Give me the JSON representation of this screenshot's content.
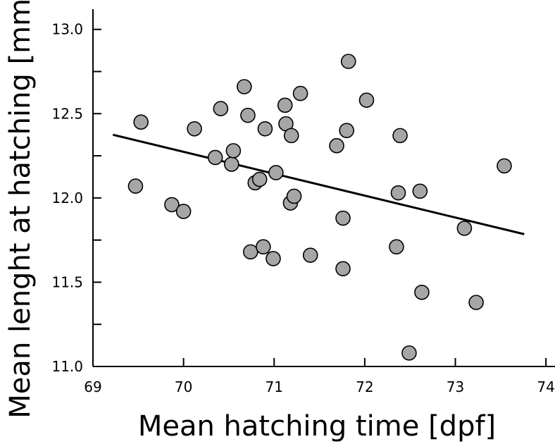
{
  "chart_data": {
    "type": "scatter",
    "xlabel": "Mean hatching time [dpf]",
    "ylabel": "Mean lenght at hatching [mm]",
    "xlim": [
      69,
      74.1
    ],
    "ylim": [
      11.0,
      13.12
    ],
    "x_ticks": [
      69,
      70,
      71,
      72,
      73,
      74
    ],
    "x_tick_labels": [
      "69",
      "70",
      "71",
      "72",
      "73",
      "74"
    ],
    "y_ticks": [
      11.0,
      11.5,
      12.0,
      12.5,
      13.0
    ],
    "y_tick_labels": [
      "11.0",
      "11.5",
      "12.0",
      "12.5",
      "13.0"
    ],
    "y_minor_ticks": [
      11.25,
      11.75,
      12.25,
      12.75
    ],
    "grid": false,
    "marker_color": "#a6a6a6",
    "marker_edge_color": "#000000",
    "line_color": "#000000",
    "points": [
      {
        "x": 69.47,
        "y": 12.07
      },
      {
        "x": 69.53,
        "y": 12.45
      },
      {
        "x": 69.87,
        "y": 11.96
      },
      {
        "x": 70.0,
        "y": 11.92
      },
      {
        "x": 70.12,
        "y": 12.41
      },
      {
        "x": 70.35,
        "y": 12.24
      },
      {
        "x": 70.41,
        "y": 12.53
      },
      {
        "x": 70.53,
        "y": 12.2
      },
      {
        "x": 70.55,
        "y": 12.28
      },
      {
        "x": 70.67,
        "y": 12.66
      },
      {
        "x": 70.71,
        "y": 12.49
      },
      {
        "x": 70.74,
        "y": 11.68
      },
      {
        "x": 70.79,
        "y": 12.09
      },
      {
        "x": 70.84,
        "y": 12.11
      },
      {
        "x": 70.88,
        "y": 11.71
      },
      {
        "x": 70.9,
        "y": 12.41
      },
      {
        "x": 70.99,
        "y": 11.64
      },
      {
        "x": 71.02,
        "y": 12.15
      },
      {
        "x": 71.12,
        "y": 12.55
      },
      {
        "x": 71.13,
        "y": 12.44
      },
      {
        "x": 71.18,
        "y": 11.97
      },
      {
        "x": 71.19,
        "y": 12.37
      },
      {
        "x": 71.22,
        "y": 12.01
      },
      {
        "x": 71.29,
        "y": 12.62
      },
      {
        "x": 71.4,
        "y": 11.66
      },
      {
        "x": 71.69,
        "y": 12.31
      },
      {
        "x": 71.76,
        "y": 11.88
      },
      {
        "x": 71.76,
        "y": 11.58
      },
      {
        "x": 71.8,
        "y": 12.4
      },
      {
        "x": 71.82,
        "y": 12.81
      },
      {
        "x": 72.02,
        "y": 12.58
      },
      {
        "x": 72.35,
        "y": 11.71
      },
      {
        "x": 72.37,
        "y": 12.03
      },
      {
        "x": 72.39,
        "y": 12.37
      },
      {
        "x": 72.49,
        "y": 11.08
      },
      {
        "x": 72.61,
        "y": 12.04
      },
      {
        "x": 72.63,
        "y": 11.44
      },
      {
        "x": 73.1,
        "y": 11.82
      },
      {
        "x": 73.23,
        "y": 11.38
      },
      {
        "x": 73.54,
        "y": 12.19
      }
    ],
    "fit_line": {
      "x": [
        69.22,
        73.76
      ],
      "y": [
        12.375,
        11.785
      ]
    }
  }
}
